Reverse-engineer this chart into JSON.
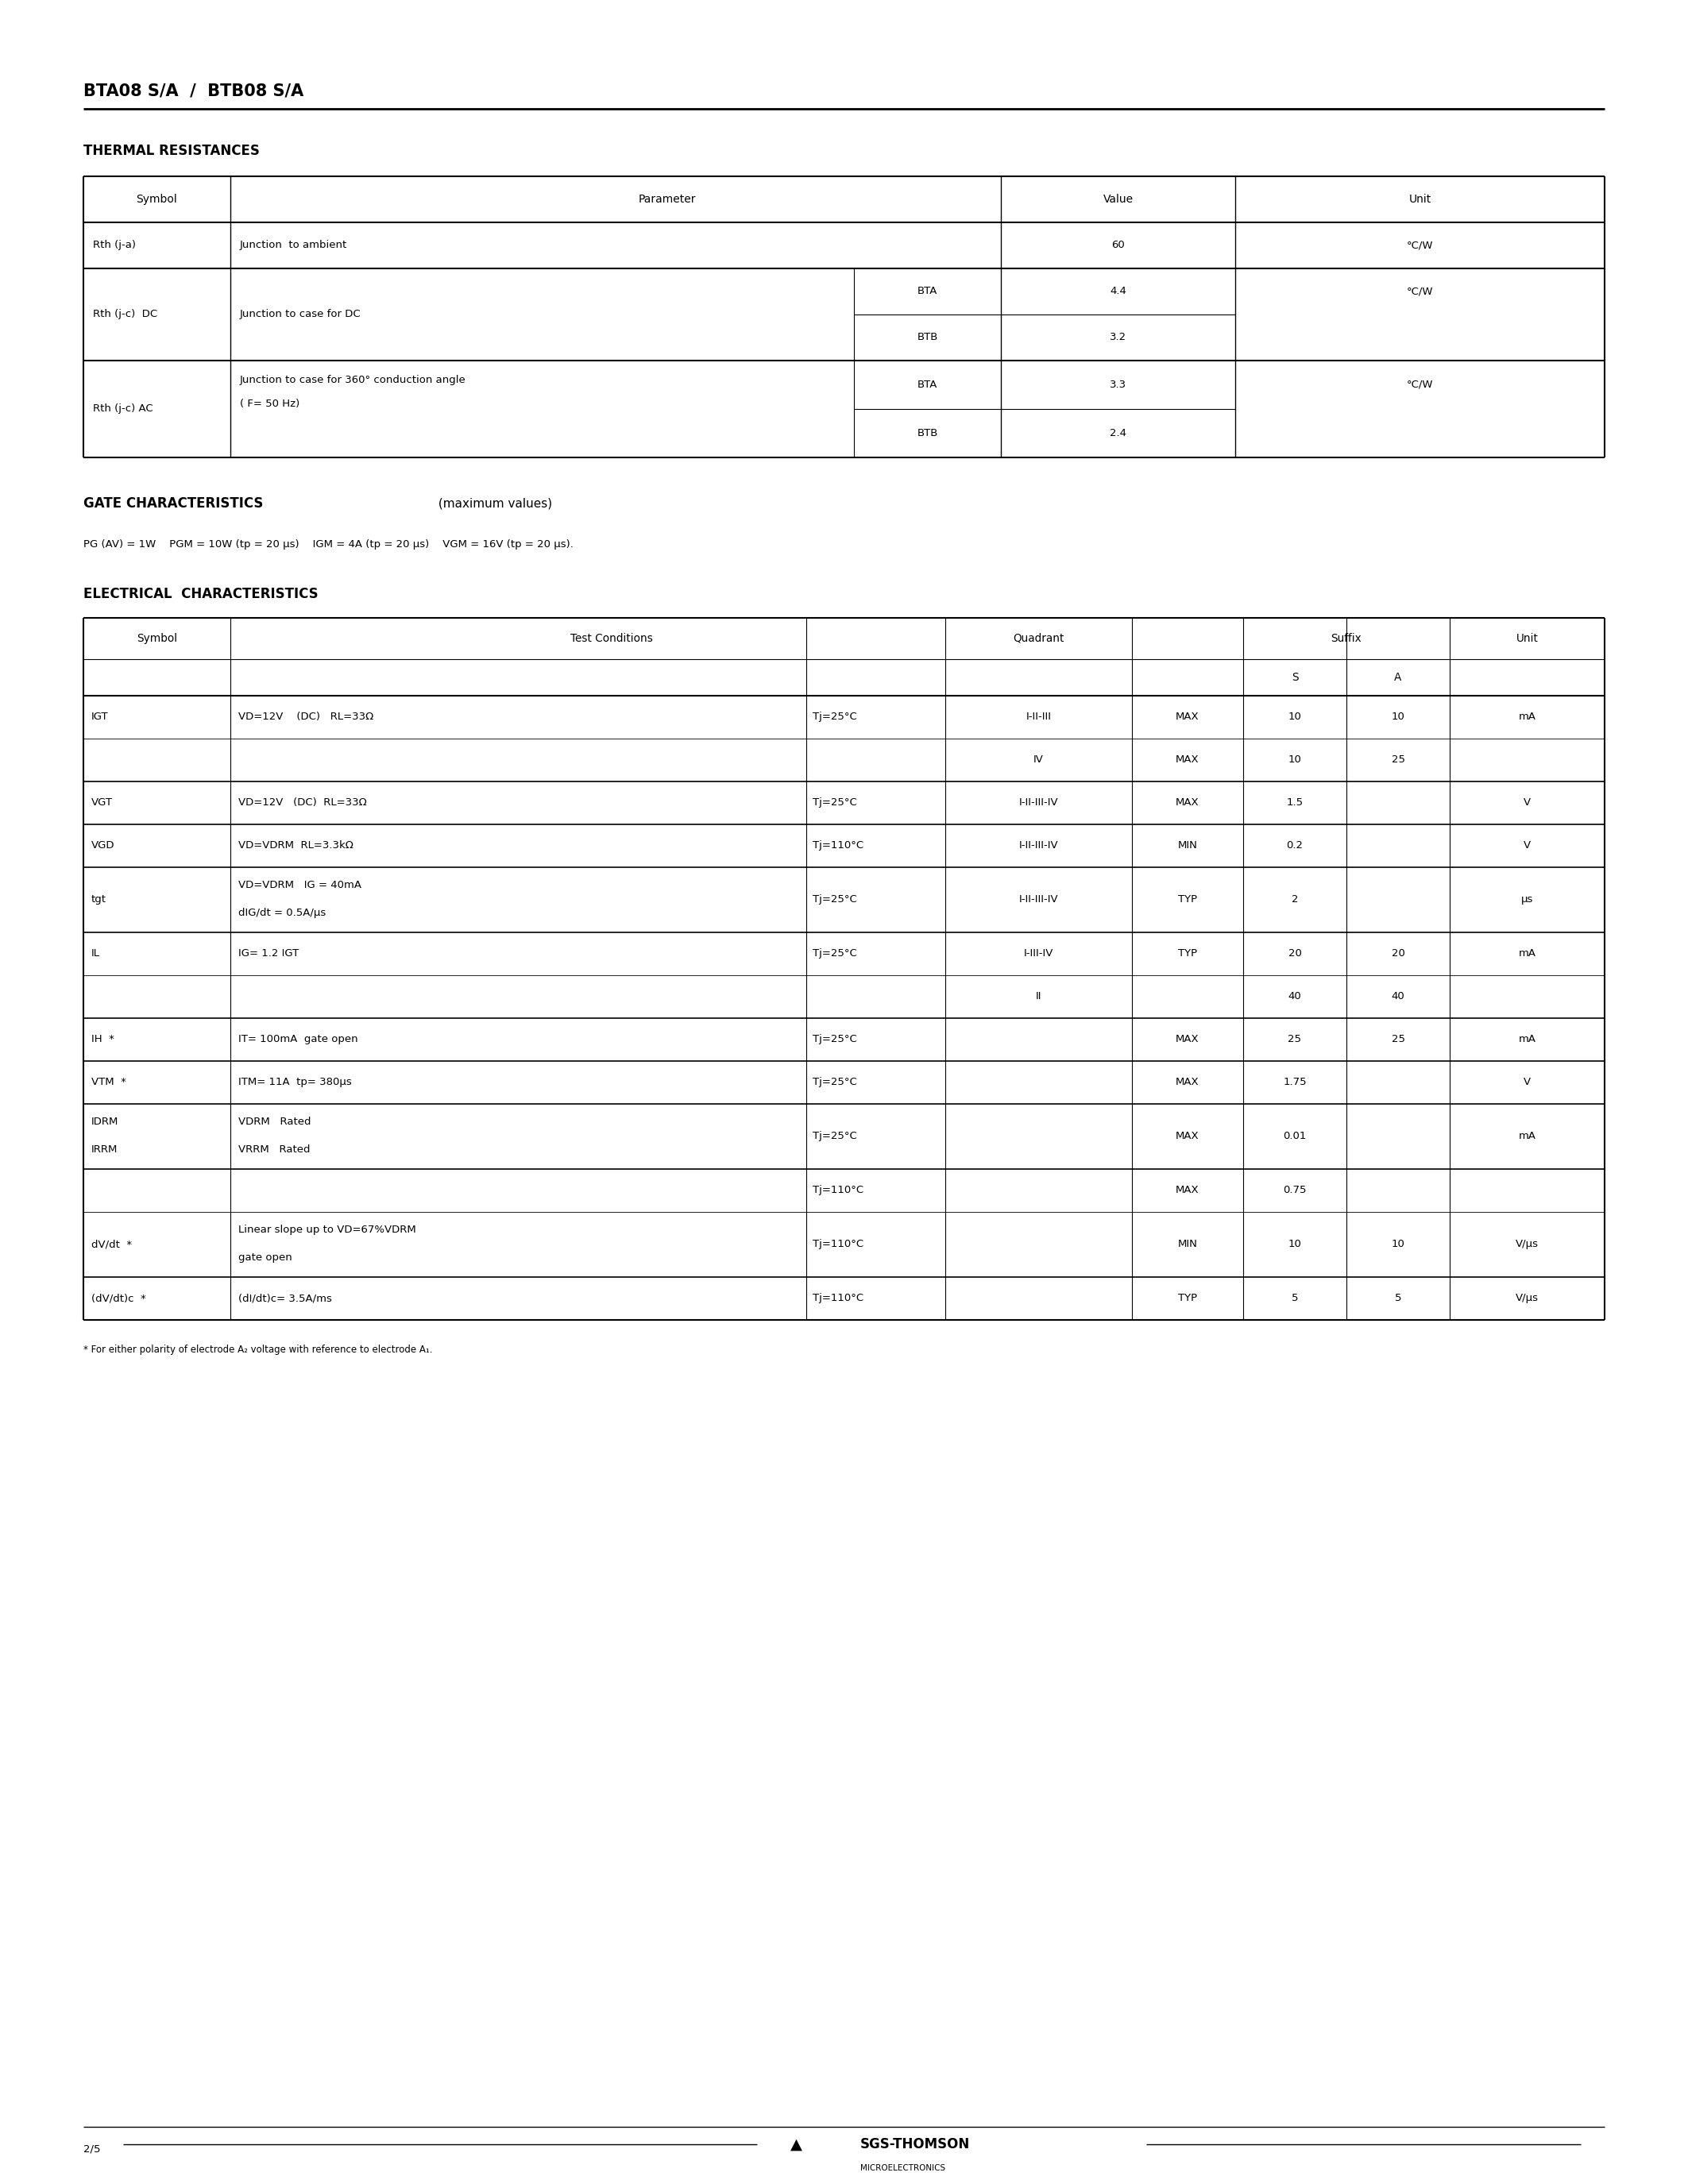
{
  "bg_color": "#ffffff",
  "page_title": "BTA08 S/A  /  BTB08 S/A",
  "section1": "THERMAL RESISTANCES",
  "section2_bold": "GATE CHARACTERISTICS",
  "section2_normal": " (maximum values)",
  "gate_chars": "PG (AV) = 1W    PGM = 10W (tp = 20 μs)    IGM = 4A (tp = 20 μs)    VGM = 16V (tp = 20 μs).",
  "section3": "ELECTRICAL  CHARACTERISTICS",
  "footnote": "* For either polarity of electrode A₂ voltage with reference to electrode A₁.",
  "footer_page": "2/5",
  "footer_logo_main": "SGS-THOMSON",
  "footer_logo_sub": "MICROELECTRONICS"
}
